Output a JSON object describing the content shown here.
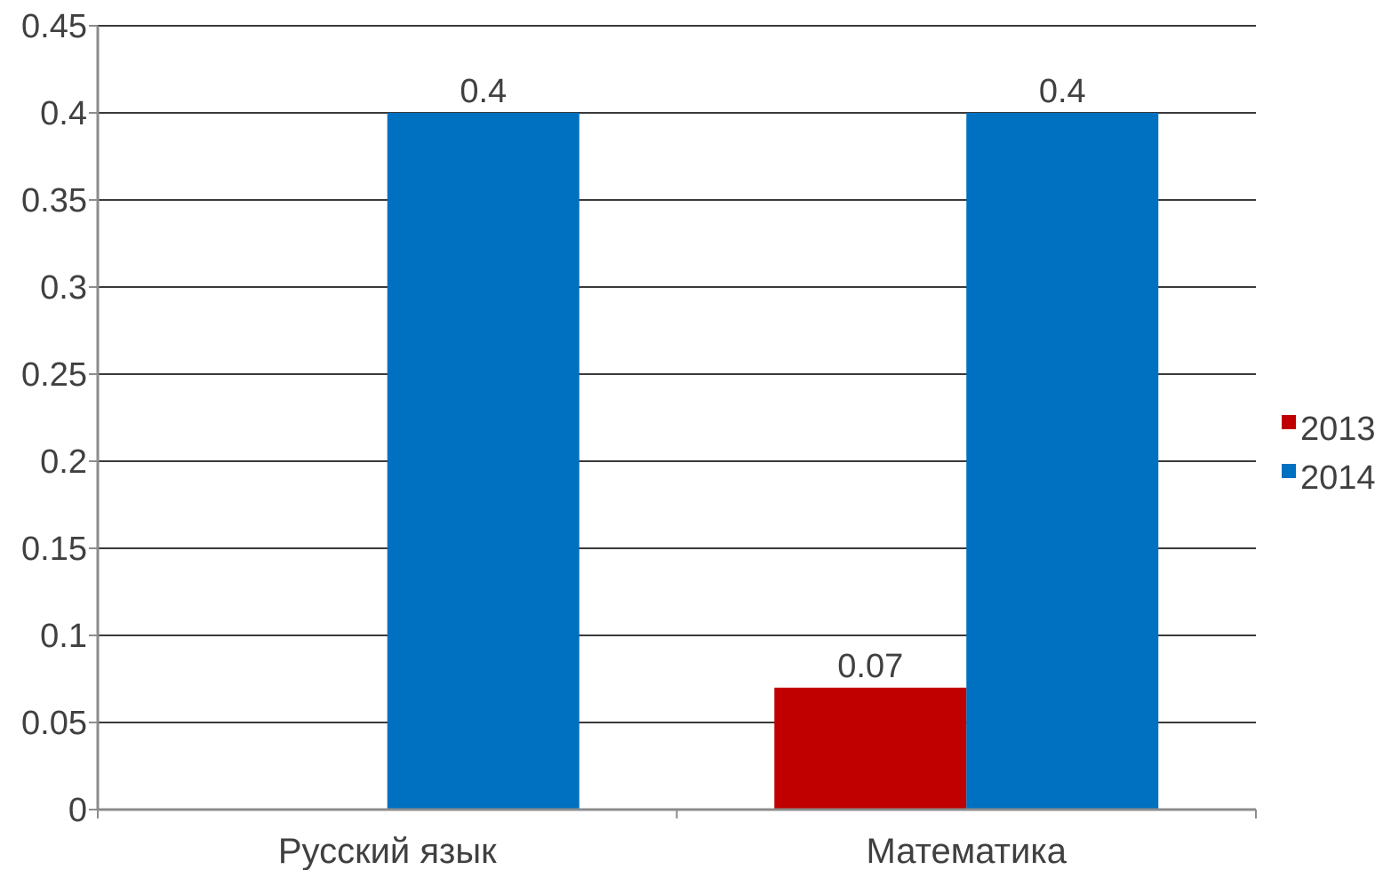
{
  "chart_data": {
    "type": "bar",
    "categories": [
      "Русский язык",
      "Математика"
    ],
    "series": [
      {
        "name": "2013",
        "values": [
          null,
          0.07
        ],
        "color": "#C00000"
      },
      {
        "name": "2014",
        "values": [
          0.4,
          0.4
        ],
        "color": "#0070C0"
      }
    ],
    "data_labels": [
      {
        "series": "2014",
        "category": "Русский язык",
        "text": "0.4"
      },
      {
        "series": "2013",
        "category": "Математика",
        "text": "0.07"
      },
      {
        "series": "2014",
        "category": "Математика",
        "text": "0.4"
      }
    ],
    "y_ticks": [
      "0",
      "0.05",
      "0.1",
      "0.15",
      "0.2",
      "0.25",
      "0.3",
      "0.35",
      "0.4",
      "0.45"
    ],
    "ylim": [
      0,
      0.45
    ],
    "title": "",
    "xlabel": "",
    "ylabel": "",
    "grid": true,
    "legend_position": "right"
  }
}
